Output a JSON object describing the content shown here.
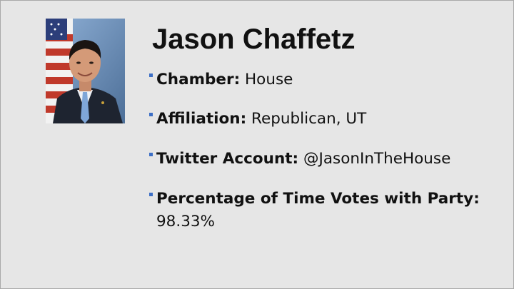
{
  "slide": {
    "title": "Jason Chaffetz",
    "bullets": [
      {
        "label": "Chamber:",
        "value": "House"
      },
      {
        "label": "Affiliation:",
        "value": "Republican, UT"
      },
      {
        "label": "Twitter Account:",
        "value": "@JasonInTheHouse"
      },
      {
        "label": "Percentage of Time Votes with Party:",
        "value": "98.33%"
      }
    ]
  },
  "colors": {
    "background": "#e6e6e6",
    "bullet_marker": "#3d6fc6",
    "text": "#111111"
  }
}
